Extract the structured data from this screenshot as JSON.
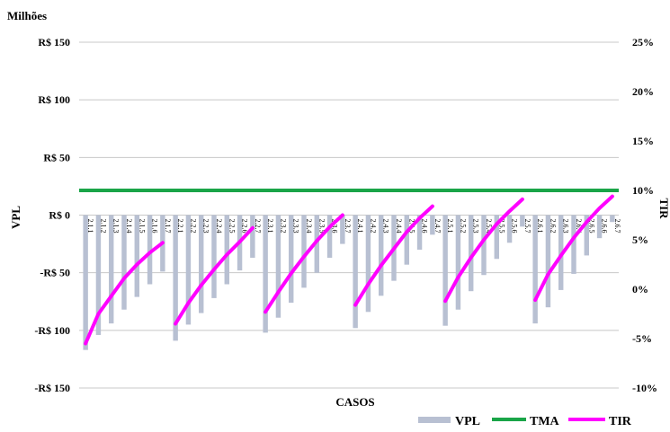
{
  "chart_data": {
    "type": "bar",
    "unit_label": "Milhões",
    "xlabel": "CASOS",
    "ylabel": "VPL",
    "y2label": "TIR",
    "ylim": [
      -150,
      150
    ],
    "y2lim": [
      -10,
      25
    ],
    "yticks": [
      "R$ 150",
      "R$ 100",
      "R$ 50",
      "R$ 0",
      "-R$ 50",
      "-R$ 100",
      "-R$ 150"
    ],
    "y2ticks": [
      "25%",
      "20%",
      "15%",
      "10%",
      "5%",
      "0%",
      "-5%",
      "-10%"
    ],
    "grid": true,
    "legend_position": "bottom-right",
    "groups": [
      {
        "categories": [
          "2.1.1",
          "2.1.2",
          "2.1.3",
          "2.1.4",
          "2.1.5",
          "2.1.6",
          "2.1.7"
        ],
        "vpl": [
          -117,
          -104,
          -94,
          -82,
          -71,
          -60,
          -49
        ],
        "tir": [
          -5.5,
          -2.5,
          -0.7,
          1.1,
          2.5,
          3.7,
          4.7
        ]
      },
      {
        "categories": [
          "2.2.1",
          "2.2.2",
          "2.2.3",
          "2.2.4",
          "2.2.5",
          "2.2.6",
          "2.2.7"
        ],
        "vpl": [
          -109,
          -95,
          -85,
          -72,
          -60,
          -48,
          -37
        ],
        "tir": [
          -3.5,
          -1.4,
          0.4,
          2.0,
          3.5,
          4.8,
          6.2
        ]
      },
      {
        "categories": [
          "2.3.1",
          "2.3.2",
          "2.3.3",
          "2.3.4",
          "2.3.5",
          "2.3.6",
          "2.3.7"
        ],
        "vpl": [
          -102,
          -89,
          -76,
          -63,
          -50,
          -37,
          -25
        ],
        "tir": [
          -2.3,
          -0.3,
          1.6,
          3.3,
          4.9,
          6.3,
          7.5
        ]
      },
      {
        "categories": [
          "2.4.1",
          "2.4.2",
          "2.4.3",
          "2.4.4",
          "2.4.5",
          "2.4.6",
          "2.4.7"
        ],
        "vpl": [
          -98,
          -84,
          -70,
          -57,
          -43,
          -30,
          -17
        ],
        "tir": [
          -1.6,
          0.5,
          2.4,
          4.1,
          5.8,
          7.2,
          8.4
        ]
      },
      {
        "categories": [
          "2.5.1",
          "2.5.2",
          "2.5.3",
          "2.5.4",
          "2.5.5",
          "2.5.6",
          "2.5.7"
        ],
        "vpl": [
          -96,
          -82,
          -66,
          -52,
          -38,
          -24,
          -10
        ],
        "tir": [
          -1.2,
          1.2,
          3.2,
          5.0,
          6.6,
          7.9,
          9.1
        ]
      },
      {
        "categories": [
          "2.6.1",
          "2.6.2",
          "2.6.3",
          "2.6.4",
          "2.6.5",
          "2.6.6",
          "2.6.7"
        ],
        "vpl": [
          -94,
          -80,
          -65,
          -51,
          -35,
          -20,
          -6
        ],
        "tir": [
          -1.1,
          1.5,
          3.4,
          5.2,
          6.8,
          8.2,
          9.4
        ]
      }
    ],
    "tma": 10,
    "series": [
      {
        "name": "VPL",
        "kind": "bar",
        "color": "#b8c0d2"
      },
      {
        "name": "TMA",
        "kind": "line",
        "color": "#1aa548"
      },
      {
        "name": "TIR",
        "kind": "line",
        "color": "#ff00ff"
      }
    ]
  }
}
